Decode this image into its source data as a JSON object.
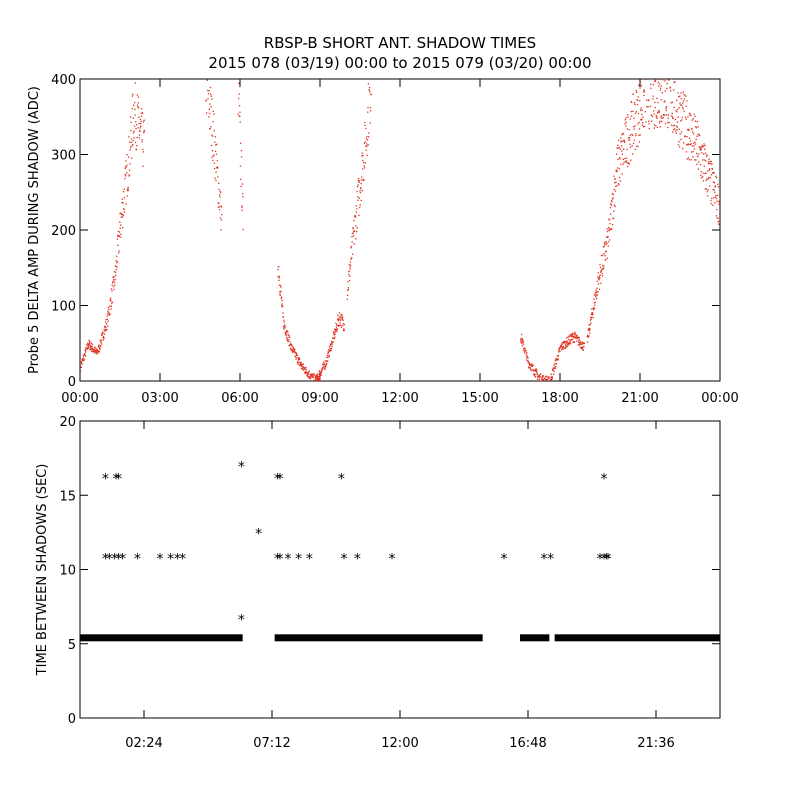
{
  "title": "RBSP-B SHORT ANT. SHADOW TIMES",
  "subtitle": "2015 078 (03/19) 00:00 to 2015 079 (03/20) 00:00",
  "chart_data": [
    {
      "type": "scatter",
      "ylabel": "Probe 5 DELTA AMP DURING SHADOW (ADC)",
      "xlabel": "",
      "x_unit": "hours",
      "xlim": [
        0,
        24
      ],
      "ylim": [
        0,
        400
      ],
      "x_tick_values": [
        0,
        3,
        6,
        9,
        12,
        15,
        18,
        21,
        24
      ],
      "x_tick_labels": [
        "00:00",
        "03:00",
        "06:00",
        "09:00",
        "12:00",
        "15:00",
        "18:00",
        "21:00",
        "00:00"
      ],
      "y_tick_values": [
        0,
        100,
        200,
        300,
        400
      ],
      "y_tick_labels": [
        "0",
        "100",
        "200",
        "300",
        "400"
      ],
      "marker": "dot",
      "color": "#e0301e",
      "series_segments": [
        {
          "x": [
            0.0,
            0.3,
            0.6,
            0.7
          ],
          "y": [
            20,
            50,
            38,
            45
          ]
        },
        {
          "x": [
            0.7,
            1.0,
            1.3,
            1.5,
            1.8,
            2.0,
            2.4
          ],
          "y": [
            45,
            80,
            140,
            210,
            290,
            360,
            310
          ]
        },
        {
          "x": [
            4.7,
            5.0,
            5.3
          ],
          "y": [
            400,
            320,
            210
          ]
        },
        {
          "x": [
            5.9,
            6.0,
            6.1
          ],
          "y": [
            400,
            300,
            205
          ]
        },
        {
          "x": [
            7.4,
            7.6,
            7.9,
            8.3,
            8.7,
            9.0
          ],
          "y": [
            160,
            80,
            45,
            20,
            5,
            0
          ]
        },
        {
          "x": [
            8.8,
            9.2,
            9.5,
            9.7,
            9.9
          ],
          "y": [
            0,
            25,
            60,
            85,
            75
          ]
        },
        {
          "x": [
            10.0,
            10.3,
            10.7,
            10.9
          ],
          "y": [
            120,
            210,
            320,
            400
          ]
        },
        {
          "x": [
            16.5,
            16.8,
            17.2,
            17.6
          ],
          "y": [
            60,
            25,
            5,
            0
          ]
        },
        {
          "x": [
            17.6,
            18.0,
            18.5,
            18.9
          ],
          "y": [
            0,
            45,
            60,
            45
          ]
        },
        {
          "x": [
            19.0,
            19.4,
            19.8,
            20.1,
            20.6,
            21.2,
            22.0,
            23.0,
            24.0
          ],
          "y": [
            55,
            130,
            190,
            280,
            330,
            380,
            380,
            320,
            230
          ]
        }
      ]
    },
    {
      "type": "scatter",
      "ylabel": "TIME BETWEEN SHADOWS (SEC)",
      "xlabel": "",
      "x_unit": "hours",
      "xlim": [
        0,
        24
      ],
      "ylim": [
        0,
        20
      ],
      "x_tick_values": [
        2.4,
        7.2,
        12.0,
        16.8,
        21.6
      ],
      "x_tick_labels": [
        "02:24",
        "07:12",
        "12:00",
        "16:48",
        "21:36"
      ],
      "y_tick_values": [
        0,
        5,
        10,
        15,
        20
      ],
      "y_tick_labels": [
        "0",
        "5",
        "10",
        "15",
        "20"
      ],
      "marker": "asterisk",
      "color": "#000000",
      "baseline": {
        "y": 5.4,
        "x_ranges": [
          [
            0.0,
            6.1
          ],
          [
            7.3,
            15.1
          ],
          [
            16.5,
            17.6
          ],
          [
            17.8,
            24.0
          ]
        ]
      },
      "points": {
        "x": [
          0.95,
          1.35,
          1.45,
          0.95,
          1.1,
          1.3,
          1.45,
          1.6,
          2.15,
          3.0,
          3.4,
          3.65,
          3.85,
          6.05,
          6.05,
          6.7,
          7.4,
          7.5,
          7.4,
          7.5,
          7.8,
          8.2,
          8.6,
          9.8,
          9.9,
          10.4,
          11.7,
          15.9,
          17.4,
          17.65,
          19.5,
          19.65,
          19.75,
          19.65,
          19.8
        ],
        "y": [
          16.2,
          16.2,
          16.2,
          10.8,
          10.8,
          10.8,
          10.8,
          10.8,
          10.8,
          10.8,
          10.8,
          10.8,
          10.8,
          17.0,
          6.7,
          12.5,
          16.2,
          16.2,
          10.8,
          10.8,
          10.8,
          10.8,
          10.8,
          16.2,
          10.8,
          10.8,
          10.8,
          10.8,
          10.8,
          10.8,
          10.8,
          10.8,
          10.8,
          16.2,
          10.8
        ]
      }
    }
  ]
}
